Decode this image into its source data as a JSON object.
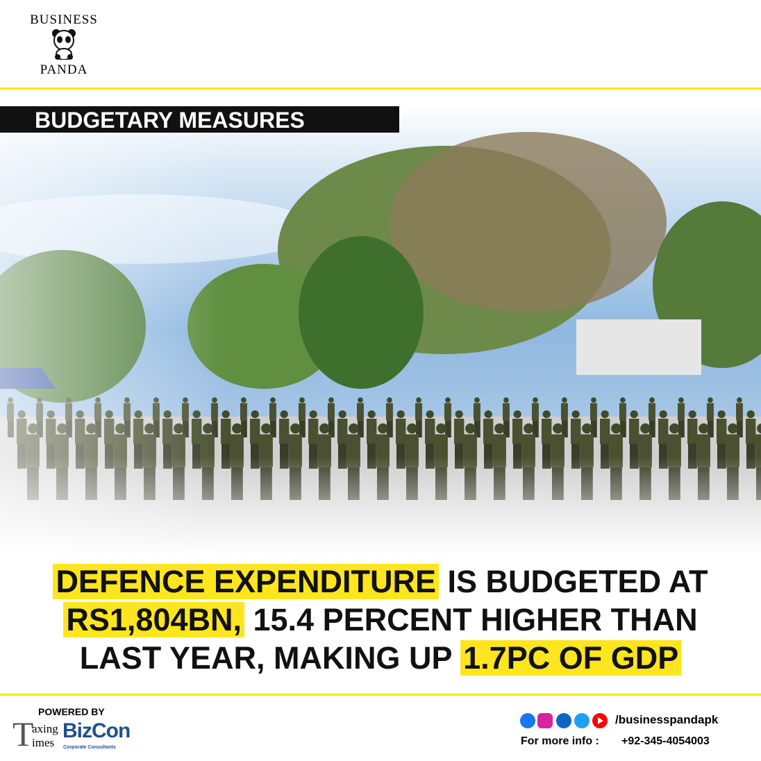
{
  "header": {
    "brand_top": "BUSINESS",
    "brand_bottom": "PANDA"
  },
  "banner": {
    "title": "BUDGETARY MEASURES"
  },
  "headline": {
    "lines": [
      [
        {
          "text": "DEFENCE EXPENDITURE",
          "highlight": true
        },
        {
          "text": " IS BUDGETED AT",
          "highlight": false
        }
      ],
      [
        {
          "text": "RS1,804BN,",
          "highlight": true
        },
        {
          "text": " 15.4 PERCENT HIGHER THAN",
          "highlight": false
        }
      ],
      [
        {
          "text": "LAST YEAR, MAKING UP ",
          "highlight": false
        },
        {
          "text": "1.7PC OF GDP",
          "highlight": true
        }
      ]
    ]
  },
  "footer": {
    "powered_by": "POWERED BY",
    "taxing_times": {
      "t": "T",
      "axing": "axing",
      "imes": "imes"
    },
    "bizcon": {
      "name": "BizCon",
      "tagline": "Corporate Consultants"
    },
    "handle": "/businesspandapk",
    "info_label": "For more info :",
    "phone": "+92-345-4054003"
  }
}
